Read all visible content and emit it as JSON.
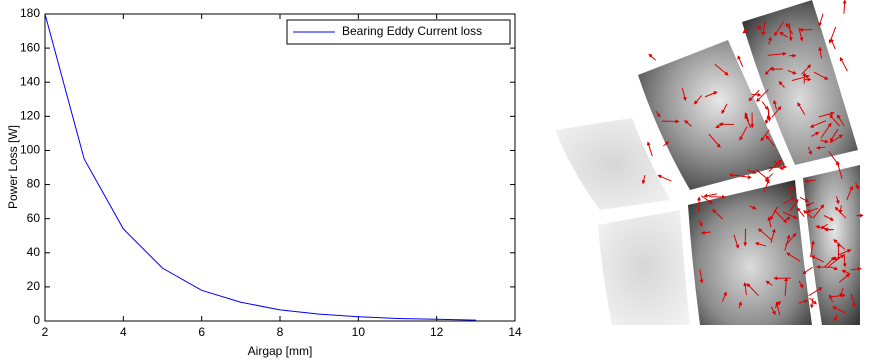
{
  "chart_data": {
    "type": "line",
    "x_label": "Airgap [mm]",
    "y_label": "Power Loss [W]",
    "x": [
      2,
      3,
      4,
      5,
      6,
      7,
      8,
      9,
      10,
      11,
      12,
      13
    ],
    "series": [
      {
        "name": "Bearing Eddy Current loss",
        "color": "#0000ff",
        "values": [
          180,
          95,
          54,
          31,
          18,
          11,
          6.5,
          4,
          2.5,
          1.5,
          1,
          0.5
        ]
      }
    ],
    "xlim": [
      2,
      14
    ],
    "xticks": [
      2,
      4,
      6,
      8,
      10,
      12,
      14
    ],
    "ylim": [
      0,
      180
    ],
    "yticks": [
      0,
      20,
      40,
      60,
      80,
      100,
      120,
      140,
      160,
      180
    ],
    "legend": "top-right"
  }
}
